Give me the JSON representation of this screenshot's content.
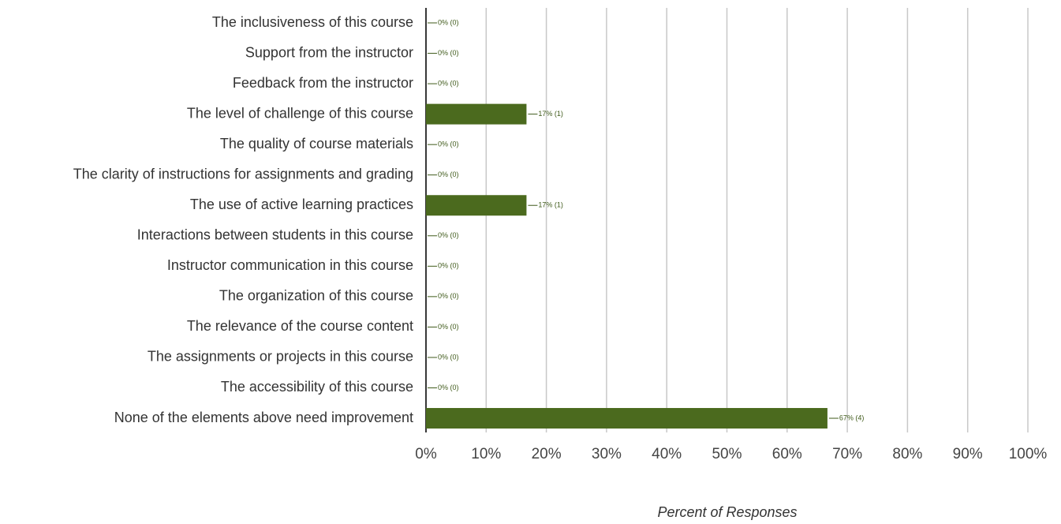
{
  "chart_data": {
    "type": "bar",
    "orientation": "horizontal",
    "categories": [
      "The inclusiveness of this course",
      "Support from the instructor",
      "Feedback from the instructor",
      "The level of challenge of this course",
      "The quality of course materials",
      "The clarity of instructions for assignments and grading",
      "The use of active learning practices",
      "Interactions between students in this course",
      "Instructor communication in this course",
      "The organization of this course",
      "The relevance of the course content",
      "The assignments or projects in this course",
      "The accessibility of this course",
      "None of the elements above need improvement"
    ],
    "values": [
      0,
      0,
      0,
      16.7,
      0,
      0,
      16.7,
      0,
      0,
      0,
      0,
      0,
      0,
      66.7
    ],
    "value_labels": [
      "0% (0)",
      "0% (0)",
      "0% (0)",
      "17% (1)",
      "0% (0)",
      "0% (0)",
      "17% (1)",
      "0% (0)",
      "0% (0)",
      "0% (0)",
      "0% (0)",
      "0% (0)",
      "0% (0)",
      "67% (4)"
    ],
    "color": "#4b6a1e",
    "xlim": [
      0,
      100
    ],
    "xticks": [
      {
        "value": 0,
        "label": "0%"
      },
      {
        "value": 10,
        "label": "10%"
      },
      {
        "value": 20,
        "label": "20%"
      },
      {
        "value": 30,
        "label": "30%"
      },
      {
        "value": 40,
        "label": "40%"
      },
      {
        "value": 50,
        "label": "50%"
      },
      {
        "value": 60,
        "label": "60%"
      },
      {
        "value": 70,
        "label": "70%"
      },
      {
        "value": 80,
        "label": "80%"
      },
      {
        "value": 90,
        "label": "90%"
      },
      {
        "value": 100,
        "label": "100%"
      }
    ],
    "xlabel": "Percent of Responses",
    "grid": true
  }
}
